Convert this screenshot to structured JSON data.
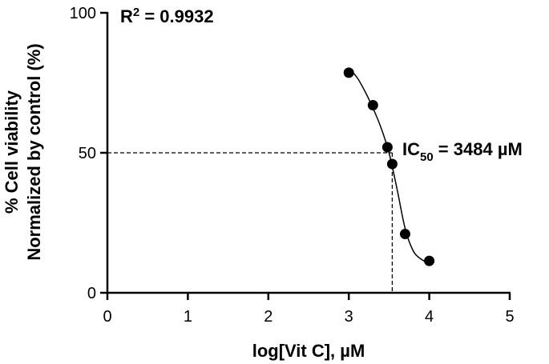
{
  "chart_data": {
    "type": "scatter",
    "x_label": "log[Vit C], µM",
    "y_label": [
      "% Cell viability",
      "Normalized by control (%)"
    ],
    "series": [
      {
        "color": "#000000",
        "x": [
          3.0,
          3.3,
          3.48,
          3.54,
          3.7,
          4.0
        ],
        "values": [
          78.6,
          67,
          52,
          46,
          21,
          11.4
        ]
      }
    ],
    "fit": {
      "color": "#000000",
      "x": [
        3.0,
        3.1,
        3.2,
        3.3,
        3.4,
        3.5,
        3.6,
        3.7,
        3.8,
        3.9,
        4.0
      ],
      "values": [
        80,
        77,
        72,
        66,
        59,
        50,
        37,
        23,
        15,
        12,
        10.5
      ]
    },
    "reference_lines": {
      "x": 3.54,
      "y": 50
    },
    "annotations": [
      {
        "parts": [
          "R",
          "2",
          " = 0.9932"
        ]
      },
      {
        "parts": [
          "IC",
          "50",
          " = 3484 µM"
        ]
      }
    ],
    "xlim": [
      0,
      5
    ],
    "xticks": [
      0,
      1,
      2,
      3,
      4,
      5
    ],
    "ylim": [
      0,
      100
    ],
    "yticks": [
      0,
      50,
      100
    ]
  }
}
